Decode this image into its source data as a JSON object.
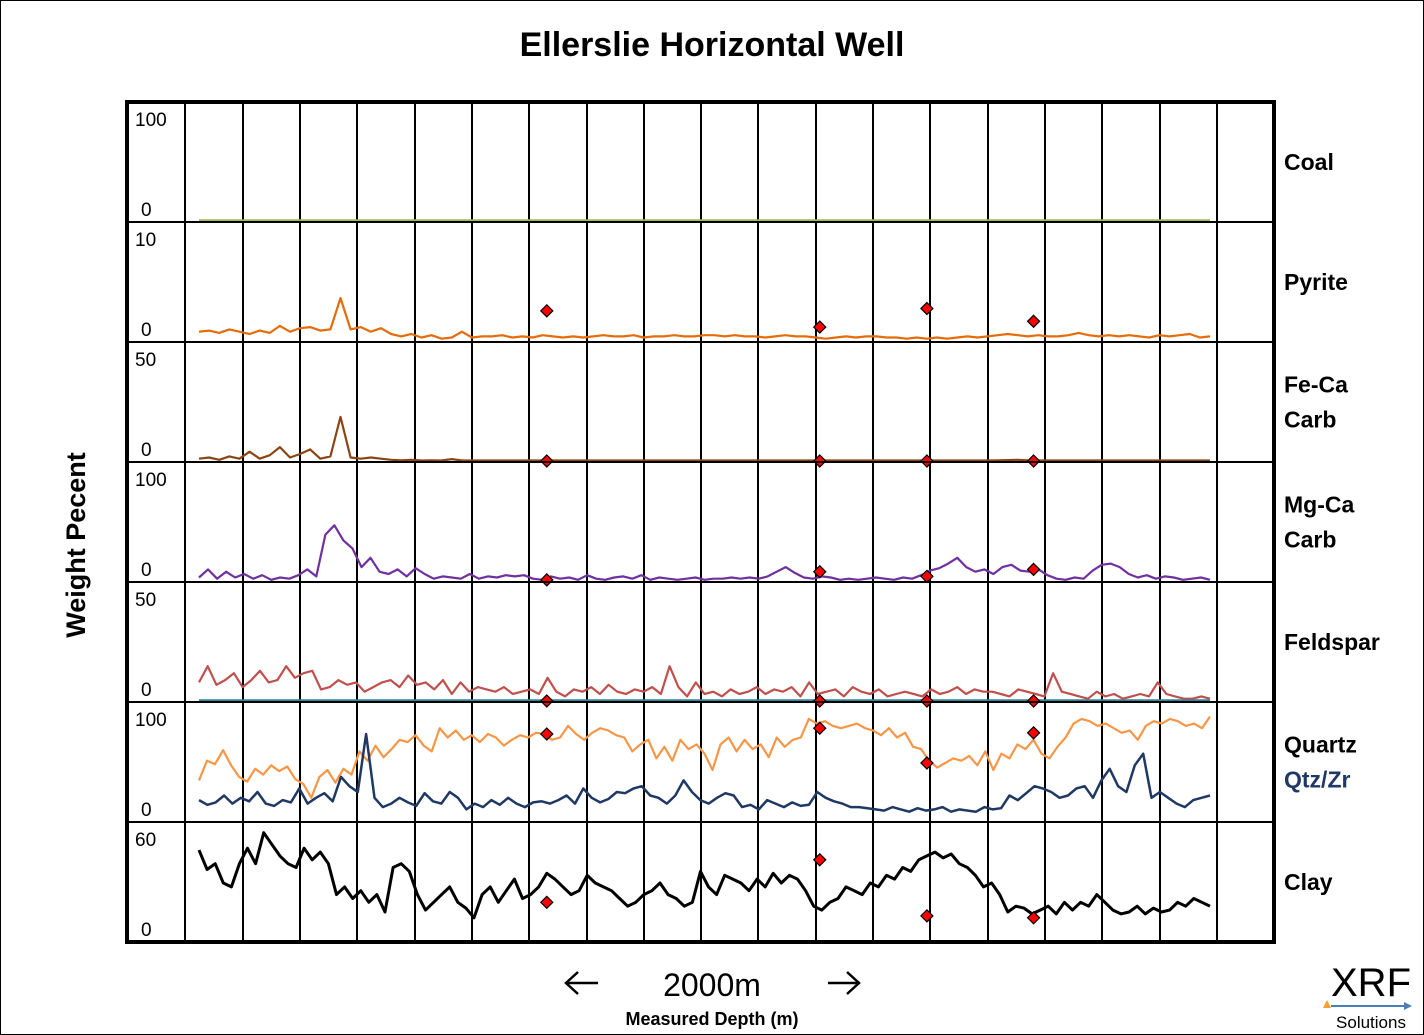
{
  "chart_data": {
    "type": "line",
    "title": "Ellerslie Horizontal Well",
    "ylabel": "Weight Pecent",
    "xlabel": "Measured Depth (m)",
    "x_scale_label": "2000m",
    "x_range": [
      0,
      2000
    ],
    "grid": true,
    "logo": {
      "text": "XRF",
      "sub": "Solutions"
    },
    "marker_x": [
      688,
      1228,
      1440,
      1651
    ],
    "colors": {
      "coal": "#9bbb59",
      "pyrite": "#e46c0a",
      "fecacarb": "#8b4513",
      "mgcacarb": "#7030a0",
      "feldspar": "#c0504d",
      "feldspar_base": "#31849b",
      "quartz": "#f79646",
      "qtzzr": "#1f3864",
      "clay": "#000000",
      "marker": "#ff0000"
    },
    "tracks": [
      {
        "name": "Coal",
        "label_lines": [
          "Coal"
        ],
        "ymin": 0,
        "ymax": 100,
        "tick_top": "100",
        "tick_bottom": "0",
        "series": [
          {
            "key": "coal",
            "color": "#9bbb59",
            "values": [
              0,
              0
            ]
          }
        ],
        "markers": []
      },
      {
        "name": "Pyrite",
        "label_lines": [
          "Pyrite"
        ],
        "ymin": 0,
        "ymax": 10,
        "tick_top": "10",
        "tick_bottom": "0",
        "series": [
          {
            "key": "pyrite",
            "color": "#e46c0a",
            "values": [
              0.8,
              0.9,
              0.7,
              1.0,
              0.8,
              0.6,
              0.9,
              0.7,
              1.3,
              0.8,
              1.1,
              1.2,
              0.9,
              1.0,
              3.7,
              1.0,
              1.2,
              0.8,
              1.1,
              0.6,
              0.4,
              0.6,
              0.3,
              0.5,
              0.2,
              0.3,
              0.8,
              0.3,
              0.4,
              0.4,
              0.5,
              0.3,
              0.4,
              0.3,
              0.5,
              0.4,
              0.3,
              0.4,
              0.3,
              0.4,
              0.5,
              0.4,
              0.4,
              0.5,
              0.3,
              0.4,
              0.4,
              0.5,
              0.4,
              0.4,
              0.5,
              0.5,
              0.4,
              0.5,
              0.4,
              0.4,
              0.3,
              0.4,
              0.5,
              0.4,
              0.4,
              0.3,
              0.2,
              0.3,
              0.4,
              0.3,
              0.4,
              0.4,
              0.3,
              0.3,
              0.2,
              0.3,
              0.2,
              0.3,
              0.2,
              0.3,
              0.4,
              0.3,
              0.4,
              0.5,
              0.6,
              0.5,
              0.4,
              0.5,
              0.4,
              0.4,
              0.5,
              0.7,
              0.5,
              0.4,
              0.5,
              0.4,
              0.5,
              0.4,
              0.3,
              0.5,
              0.4,
              0.5,
              0.6,
              0.3,
              0.4
            ]
          }
        ],
        "markers": [
          2.6,
          1.2,
          2.8,
          1.7
        ]
      },
      {
        "name": "Fe-Ca Carb",
        "label_lines": [
          "Fe-Ca",
          "Carb"
        ],
        "ymin": 0,
        "ymax": 50,
        "tick_top": "50",
        "tick_bottom": "0",
        "series": [
          {
            "key": "fecacarb",
            "color": "#8b4513",
            "values": [
              1,
              1.5,
              0.5,
              2,
              1,
              4,
              1,
              2.5,
              6,
              1.5,
              3,
              5,
              1,
              2,
              19,
              1.5,
              1,
              1.5,
              1,
              0.5,
              0.3,
              0.5,
              0.2,
              0.3,
              0.2,
              0.8,
              0.2,
              0.2,
              0.2,
              0.2,
              0.2,
              0.2,
              0.2,
              0.2,
              0.2,
              0.2,
              0.2,
              0.2,
              0.2,
              0.2,
              0.2,
              0.2,
              0.2,
              0.2,
              0.2,
              0.2,
              0.2,
              0.2,
              0.2,
              0.2,
              0.2,
              0.2,
              0.2,
              0.2,
              0.2,
              0.2,
              0.2,
              0.2,
              0.2,
              0.2,
              0.2,
              0.2,
              0.2,
              0.2,
              0.2,
              0.2,
              0.2,
              0.2,
              0.2,
              0.2,
              0.2,
              0.2,
              0.2,
              0.2,
              0.2,
              0.2,
              0.2,
              0.2,
              0.2,
              0.3,
              0.4,
              0.5,
              0.3,
              0.2,
              0.2,
              0.2,
              0.2,
              0.2,
              0.2,
              0.2,
              0.2,
              0.2,
              0.2,
              0.2,
              0.2,
              0.2,
              0.2,
              0.2,
              0.2,
              0.2,
              0.2
            ]
          }
        ],
        "markers": [
          0,
          0,
          0,
          0
        ]
      },
      {
        "name": "Mg-Ca Carb",
        "label_lines": [
          "Mg-Ca",
          "Carb"
        ],
        "ymin": 0,
        "ymax": 100,
        "tick_top": "100",
        "tick_bottom": "0",
        "series": [
          {
            "key": "mgcacarb",
            "color": "#7030a0",
            "values": [
              3,
              10,
              2,
              8,
              3,
              6,
              2,
              5,
              1,
              3,
              2,
              5,
              10,
              4,
              40,
              48,
              35,
              28,
              12,
              20,
              8,
              6,
              10,
              4,
              11,
              6,
              2,
              4,
              3,
              2,
              6,
              2,
              4,
              3,
              5,
              4,
              5,
              2,
              1,
              4,
              2,
              3,
              1,
              5,
              2,
              1,
              3,
              4,
              2,
              5,
              1,
              3,
              2,
              1,
              2,
              3,
              1,
              2,
              2,
              3,
              2,
              3,
              2,
              4,
              8,
              12,
              7,
              3,
              2,
              4,
              3,
              1,
              2,
              1,
              2,
              3,
              2,
              1,
              3,
              2,
              5,
              9,
              11,
              15,
              20,
              12,
              8,
              10,
              6,
              12,
              14,
              9,
              8,
              10,
              5,
              2,
              1,
              3,
              2,
              9,
              14,
              15,
              12,
              6,
              3,
              5,
              2,
              4,
              3,
              1,
              2,
              3,
              1
            ]
          }
        ],
        "markers": [
          1,
          8,
          4,
          10
        ]
      },
      {
        "name": "Feldspar",
        "label_lines": [
          "Feldspar"
        ],
        "ymin": 0,
        "ymax": 50,
        "tick_top": "50",
        "tick_bottom": "0",
        "series": [
          {
            "key": "feldspar",
            "color": "#c0504d",
            "values": [
              8,
              15,
              7,
              9,
              12,
              6,
              9,
              13,
              8,
              9,
              15,
              10,
              12,
              13,
              5,
              6,
              9,
              7,
              8,
              4,
              6,
              8,
              9,
              6,
              11,
              7,
              8,
              5,
              9,
              3,
              8,
              4,
              6,
              5,
              4,
              6,
              3,
              4,
              5,
              3,
              10,
              4,
              2,
              5,
              4,
              6,
              3,
              7,
              4,
              3,
              5,
              4,
              6,
              3,
              15,
              6,
              2,
              8,
              3,
              4,
              2,
              5,
              3,
              4,
              6,
              3,
              5,
              4,
              6,
              2,
              8,
              3,
              4,
              5,
              2,
              6,
              4,
              3,
              5,
              2,
              3,
              4,
              3,
              2,
              5,
              3,
              4,
              6,
              3,
              5,
              4,
              4,
              3,
              2,
              5,
              4,
              3,
              2,
              12,
              4,
              3,
              2,
              1,
              4,
              2,
              3,
              1,
              2,
              3,
              2,
              8,
              3,
              2,
              1,
              1,
              2,
              1
            ]
          },
          {
            "key": "feldspar_base",
            "color": "#31849b",
            "values": [
              0,
              0
            ]
          }
        ],
        "markers": [
          0,
          0,
          0,
          0
        ]
      },
      {
        "name": "Quartz",
        "label_lines": [
          "Quartz",
          "Qtz/Zr"
        ],
        "label_colors": [
          "#000000",
          "#1f3864"
        ],
        "ymin": 0,
        "ymax": 100,
        "tick_top": "100",
        "tick_bottom": "0",
        "series": [
          {
            "key": "quartz",
            "color": "#f79646",
            "values": [
              35,
              52,
              49,
              61,
              48,
              38,
              34,
              45,
              40,
              48,
              43,
              47,
              36,
              32,
              20,
              38,
              44,
              33,
              45,
              40,
              60,
              52,
              65,
              55,
              62,
              70,
              68,
              74,
              65,
              60,
              80,
              72,
              78,
              70,
              74,
              68,
              75,
              72,
              65,
              70,
              74,
              72,
              76,
              75,
              70,
              72,
              82,
              75,
              70,
              76,
              80,
              78,
              74,
              72,
              60,
              66,
              70,
              54,
              64,
              52,
              70,
              62,
              66,
              58,
              44,
              66,
              72,
              60,
              70,
              62,
              66,
              55,
              72,
              64,
              70,
              72,
              88,
              84,
              86,
              82,
              80,
              82,
              84,
              80,
              78,
              74,
              80,
              72,
              76,
              64,
              62,
              52,
              46,
              50,
              54,
              52,
              56,
              48,
              60,
              44,
              58,
              54,
              66,
              62,
              70,
              58,
              54,
              64,
              72,
              84,
              88,
              86,
              82,
              84,
              80,
              76,
              78,
              70,
              82,
              86,
              84,
              88,
              86,
              82,
              84,
              80,
              90
            ]
          },
          {
            "key": "qtzzr",
            "color": "#1f3864",
            "values": [
              18,
              14,
              16,
              22,
              15,
              20,
              17,
              25,
              15,
              13,
              18,
              16,
              28,
              15,
              20,
              24,
              17,
              38,
              30,
              25,
              75,
              20,
              12,
              15,
              20,
              16,
              13,
              24,
              17,
              15,
              25,
              20,
              10,
              15,
              12,
              18,
              14,
              20,
              15,
              12,
              16,
              17,
              15,
              18,
              22,
              15,
              28,
              20,
              16,
              19,
              25,
              24,
              28,
              30,
              22,
              20,
              15,
              22,
              35,
              25,
              18,
              15,
              20,
              24,
              22,
              12,
              14,
              10,
              18,
              15,
              12,
              16,
              13,
              14,
              25,
              20,
              17,
              15,
              12,
              12,
              11,
              10,
              9,
              12,
              10,
              8,
              11,
              9,
              10,
              12,
              8,
              10,
              9,
              8,
              12,
              10,
              11,
              22,
              18,
              24,
              30,
              28,
              25,
              20,
              22,
              28,
              30,
              20,
              35,
              45,
              30,
              25,
              48,
              58,
              20,
              25,
              20,
              15,
              12,
              18,
              20,
              22
            ]
          }
        ],
        "markers": [
          75,
          80,
          50,
          76
        ]
      },
      {
        "name": "Clay",
        "label_lines": [
          "Clay"
        ],
        "ymin": 0,
        "ymax": 60,
        "tick_top": "60",
        "tick_bottom": "0",
        "series": [
          {
            "key": "clay",
            "color": "#000000",
            "values": [
              47,
              37,
              40,
              30,
              28,
              40,
              48,
              40,
              56,
              50,
              44,
              40,
              38,
              48,
              42,
              46,
              40,
              24,
              28,
              22,
              26,
              20,
              24,
              15,
              38,
              40,
              36,
              24,
              16,
              20,
              24,
              28,
              20,
              17,
              12,
              24,
              28,
              20,
              26,
              32,
              22,
              24,
              28,
              35,
              32,
              28,
              24,
              26,
              34,
              30,
              28,
              26,
              22,
              18,
              20,
              24,
              26,
              30,
              24,
              22,
              18,
              20,
              36,
              28,
              24,
              34,
              32,
              30,
              26,
              32,
              28,
              35,
              30,
              34,
              32,
              26,
              18,
              16,
              20,
              22,
              28,
              26,
              24,
              30,
              28,
              34,
              32,
              38,
              36,
              42,
              44,
              46,
              43,
              45,
              40,
              38,
              34,
              28,
              30,
              24,
              15,
              18,
              17,
              14,
              16,
              18,
              14,
              20,
              16,
              20,
              18,
              24,
              20,
              16,
              14,
              15,
              18,
              14,
              17,
              15,
              16,
              20,
              18,
              22,
              20,
              18
            ]
          }
        ],
        "markers": [
          20,
          42,
          13,
          12
        ]
      }
    ]
  }
}
